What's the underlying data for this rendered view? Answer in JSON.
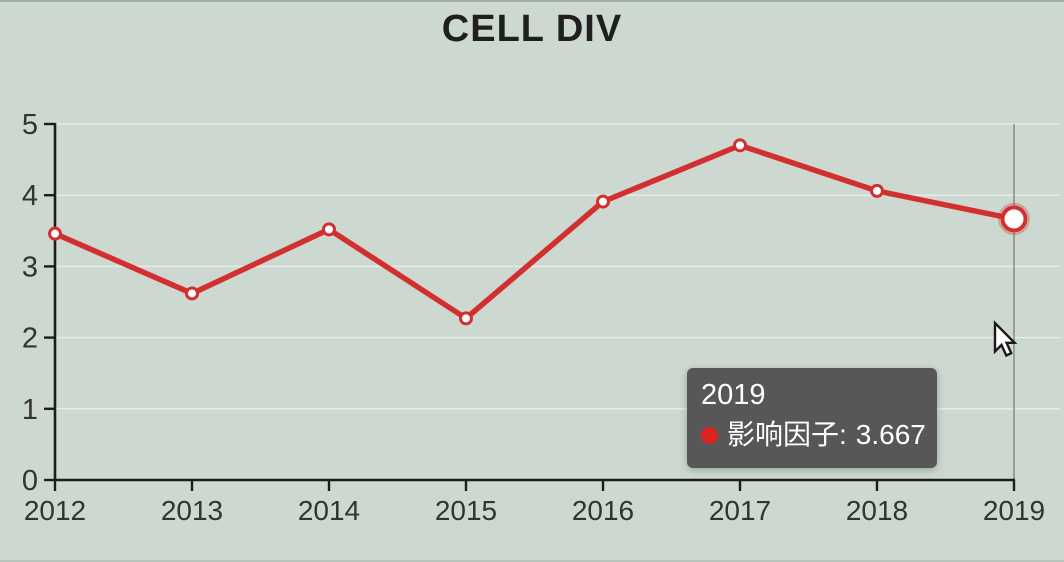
{
  "title": "CELL DIV",
  "colors": {
    "background": "#cdd9d0",
    "line": "#d23030",
    "point_fill": "#ffffff",
    "axis": "#1c1c1c",
    "tick_label": "#333333",
    "grid": "rgba(255,255,255,0.5)",
    "crosshair": "#8d8d8d",
    "tooltip_bg": "#575757",
    "tooltip_text": "#ffffff",
    "tooltip_dot": "#dd2222"
  },
  "chart_data": {
    "type": "line",
    "title": "CELL DIV",
    "categories": [
      "2012",
      "2013",
      "2014",
      "2015",
      "2016",
      "2017",
      "2018",
      "2019"
    ],
    "series": [
      {
        "name": "影响因子",
        "values": [
          3.46,
          2.62,
          3.52,
          2.27,
          3.91,
          4.7,
          4.06,
          3.667
        ],
        "color": "#d23030"
      }
    ],
    "ylim": [
      0,
      5
    ],
    "yticks": [
      0,
      1,
      2,
      3,
      4,
      5
    ],
    "grid": true,
    "legend_position": "none",
    "hovered_index": 7
  },
  "tooltip": {
    "title": "2019",
    "series_label": "影响因子",
    "separator": ":",
    "value": "3.667"
  }
}
